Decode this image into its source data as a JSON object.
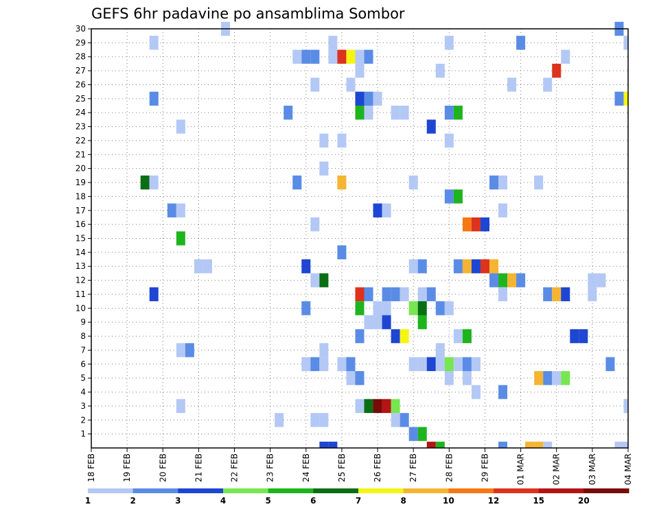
{
  "chart_data": {
    "type": "heatmap",
    "title": "GEFS 6hr padavine po ansamblima Sombor",
    "y_ticks": [
      "1",
      "2",
      "3",
      "4",
      "5",
      "6",
      "7",
      "8",
      "9",
      "10",
      "11",
      "12",
      "13",
      "14",
      "15",
      "16",
      "17",
      "18",
      "19",
      "20",
      "21",
      "22",
      "23",
      "24",
      "25",
      "26",
      "27",
      "28",
      "29",
      "30"
    ],
    "x_ticks": [
      "18 FEB",
      "19 FEB",
      "20 FEB",
      "21 FEB",
      "22 FEB",
      "23 FEB",
      "24 FEB",
      "25 FEB",
      "26 FEB",
      "27 FEB",
      "28 FEB",
      "29 FEB",
      "01 MAR",
      "02 MAR",
      "03 MAR",
      "04 MAR"
    ],
    "x_range_days": [
      0,
      15
    ],
    "y_range": [
      0,
      30
    ],
    "x_step_hours": 6,
    "grid": true,
    "colorbar": {
      "labels": [
        "1",
        "2",
        "3",
        "4",
        "5",
        "6",
        "7",
        "8",
        "10",
        "12",
        "15",
        "20"
      ],
      "colors": [
        "#b4c8f5",
        "#5a8ce6",
        "#1e46d2",
        "#78e650",
        "#1eb41e",
        "#0a6e14",
        "#f5f514",
        "#f5b432",
        "#f57814",
        "#dc321e",
        "#b41414",
        "#780a0a"
      ]
    },
    "cells": [
      {
        "t": 3.75,
        "y": 30,
        "c": 1
      },
      {
        "t": 14.75,
        "y": 30,
        "c": 2
      },
      {
        "t": 1.75,
        "y": 29,
        "c": 1
      },
      {
        "t": 6.75,
        "y": 29,
        "c": 1
      },
      {
        "t": 10.0,
        "y": 29,
        "c": 1
      },
      {
        "t": 12.0,
        "y": 29,
        "c": 2
      },
      {
        "t": 15.0,
        "y": 29,
        "c": 1
      },
      {
        "t": 5.75,
        "y": 28,
        "c": 1
      },
      {
        "t": 6.0,
        "y": 28,
        "c": 2
      },
      {
        "t": 6.25,
        "y": 28,
        "c": 2
      },
      {
        "t": 6.75,
        "y": 28,
        "c": 1
      },
      {
        "t": 7.0,
        "y": 28,
        "c": 10
      },
      {
        "t": 7.25,
        "y": 28,
        "c": 7
      },
      {
        "t": 7.5,
        "y": 28,
        "c": 1
      },
      {
        "t": 7.75,
        "y": 28,
        "c": 2
      },
      {
        "t": 13.25,
        "y": 28,
        "c": 1
      },
      {
        "t": 7.5,
        "y": 27,
        "c": 1
      },
      {
        "t": 9.75,
        "y": 27,
        "c": 1
      },
      {
        "t": 13.0,
        "y": 27,
        "c": 10
      },
      {
        "t": 6.25,
        "y": 26,
        "c": 1
      },
      {
        "t": 7.25,
        "y": 26,
        "c": 1
      },
      {
        "t": 11.75,
        "y": 26,
        "c": 1
      },
      {
        "t": 12.75,
        "y": 26,
        "c": 1
      },
      {
        "t": 1.75,
        "y": 25,
        "c": 2
      },
      {
        "t": 7.5,
        "y": 25,
        "c": 3
      },
      {
        "t": 7.75,
        "y": 25,
        "c": 2
      },
      {
        "t": 8.0,
        "y": 25,
        "c": 1
      },
      {
        "t": 14.75,
        "y": 25,
        "c": 2
      },
      {
        "t": 15.0,
        "y": 25,
        "c": 7
      },
      {
        "t": 5.5,
        "y": 24,
        "c": 2
      },
      {
        "t": 7.5,
        "y": 24,
        "c": 5
      },
      {
        "t": 7.75,
        "y": 24,
        "c": 1
      },
      {
        "t": 8.5,
        "y": 24,
        "c": 1
      },
      {
        "t": 8.75,
        "y": 24,
        "c": 1
      },
      {
        "t": 10.0,
        "y": 24,
        "c": 2
      },
      {
        "t": 10.25,
        "y": 24,
        "c": 5
      },
      {
        "t": 2.5,
        "y": 23,
        "c": 1
      },
      {
        "t": 9.5,
        "y": 23,
        "c": 3
      },
      {
        "t": 6.5,
        "y": 22,
        "c": 1
      },
      {
        "t": 7.0,
        "y": 22,
        "c": 1
      },
      {
        "t": 10.0,
        "y": 22,
        "c": 1
      },
      {
        "t": 6.5,
        "y": 20,
        "c": 1
      },
      {
        "t": 1.5,
        "y": 19,
        "c": 6
      },
      {
        "t": 1.75,
        "y": 19,
        "c": 1
      },
      {
        "t": 5.75,
        "y": 19,
        "c": 2
      },
      {
        "t": 7.0,
        "y": 19,
        "c": 8
      },
      {
        "t": 9.0,
        "y": 19,
        "c": 1
      },
      {
        "t": 11.25,
        "y": 19,
        "c": 2
      },
      {
        "t": 11.5,
        "y": 19,
        "c": 1
      },
      {
        "t": 12.5,
        "y": 19,
        "c": 1
      },
      {
        "t": 10.0,
        "y": 18,
        "c": 2
      },
      {
        "t": 10.25,
        "y": 18,
        "c": 5
      },
      {
        "t": 2.25,
        "y": 17,
        "c": 2
      },
      {
        "t": 2.5,
        "y": 17,
        "c": 1
      },
      {
        "t": 8.0,
        "y": 17,
        "c": 3
      },
      {
        "t": 8.25,
        "y": 17,
        "c": 1
      },
      {
        "t": 11.5,
        "y": 17,
        "c": 1
      },
      {
        "t": 6.25,
        "y": 16,
        "c": 1
      },
      {
        "t": 10.5,
        "y": 16,
        "c": 9
      },
      {
        "t": 10.75,
        "y": 16,
        "c": 10
      },
      {
        "t": 11.0,
        "y": 16,
        "c": 3
      },
      {
        "t": 2.5,
        "y": 15,
        "c": 5
      },
      {
        "t": 7.0,
        "y": 14,
        "c": 2
      },
      {
        "t": 3.0,
        "y": 13,
        "c": 1
      },
      {
        "t": 3.25,
        "y": 13,
        "c": 1
      },
      {
        "t": 6.0,
        "y": 13,
        "c": 3
      },
      {
        "t": 9.0,
        "y": 13,
        "c": 1
      },
      {
        "t": 9.25,
        "y": 13,
        "c": 2
      },
      {
        "t": 10.25,
        "y": 13,
        "c": 2
      },
      {
        "t": 10.5,
        "y": 13,
        "c": 8
      },
      {
        "t": 10.75,
        "y": 13,
        "c": 3
      },
      {
        "t": 11.0,
        "y": 13,
        "c": 10
      },
      {
        "t": 11.25,
        "y": 13,
        "c": 8
      },
      {
        "t": 6.25,
        "y": 12,
        "c": 1
      },
      {
        "t": 6.5,
        "y": 12,
        "c": 6
      },
      {
        "t": 11.25,
        "y": 12,
        "c": 2
      },
      {
        "t": 11.5,
        "y": 12,
        "c": 5
      },
      {
        "t": 11.75,
        "y": 12,
        "c": 8
      },
      {
        "t": 12.0,
        "y": 12,
        "c": 2
      },
      {
        "t": 14.0,
        "y": 12,
        "c": 1
      },
      {
        "t": 14.25,
        "y": 12,
        "c": 1
      },
      {
        "t": 1.75,
        "y": 11,
        "c": 3
      },
      {
        "t": 7.5,
        "y": 11,
        "c": 10
      },
      {
        "t": 7.75,
        "y": 11,
        "c": 2
      },
      {
        "t": 8.25,
        "y": 11,
        "c": 2
      },
      {
        "t": 8.5,
        "y": 11,
        "c": 2
      },
      {
        "t": 8.75,
        "y": 11,
        "c": 1
      },
      {
        "t": 9.25,
        "y": 11,
        "c": 1
      },
      {
        "t": 9.5,
        "y": 11,
        "c": 2
      },
      {
        "t": 11.5,
        "y": 11,
        "c": 1
      },
      {
        "t": 12.75,
        "y": 11,
        "c": 2
      },
      {
        "t": 13.0,
        "y": 11,
        "c": 8
      },
      {
        "t": 13.25,
        "y": 11,
        "c": 3
      },
      {
        "t": 14.0,
        "y": 11,
        "c": 1
      },
      {
        "t": 6.0,
        "y": 10,
        "c": 2
      },
      {
        "t": 7.5,
        "y": 10,
        "c": 5
      },
      {
        "t": 8.0,
        "y": 10,
        "c": 1
      },
      {
        "t": 8.25,
        "y": 10,
        "c": 1
      },
      {
        "t": 9.0,
        "y": 10,
        "c": 4
      },
      {
        "t": 9.25,
        "y": 10,
        "c": 6
      },
      {
        "t": 9.75,
        "y": 10,
        "c": 2
      },
      {
        "t": 10.0,
        "y": 10,
        "c": 1
      },
      {
        "t": 7.75,
        "y": 9,
        "c": 1
      },
      {
        "t": 8.0,
        "y": 9,
        "c": 1
      },
      {
        "t": 8.25,
        "y": 9,
        "c": 3
      },
      {
        "t": 9.25,
        "y": 9,
        "c": 5
      },
      {
        "t": 7.5,
        "y": 8,
        "c": 2
      },
      {
        "t": 8.5,
        "y": 8,
        "c": 3
      },
      {
        "t": 8.75,
        "y": 8,
        "c": 7
      },
      {
        "t": 10.25,
        "y": 8,
        "c": 1
      },
      {
        "t": 10.5,
        "y": 8,
        "c": 5
      },
      {
        "t": 13.5,
        "y": 8,
        "c": 3
      },
      {
        "t": 13.75,
        "y": 8,
        "c": 3
      },
      {
        "t": 2.5,
        "y": 7,
        "c": 1
      },
      {
        "t": 2.75,
        "y": 7,
        "c": 2
      },
      {
        "t": 6.5,
        "y": 7,
        "c": 1
      },
      {
        "t": 9.75,
        "y": 7,
        "c": 1
      },
      {
        "t": 6.0,
        "y": 6,
        "c": 1
      },
      {
        "t": 6.25,
        "y": 6,
        "c": 2
      },
      {
        "t": 6.5,
        "y": 6,
        "c": 1
      },
      {
        "t": 7.0,
        "y": 6,
        "c": 1
      },
      {
        "t": 7.25,
        "y": 6,
        "c": 2
      },
      {
        "t": 9.0,
        "y": 6,
        "c": 1
      },
      {
        "t": 9.25,
        "y": 6,
        "c": 1
      },
      {
        "t": 9.5,
        "y": 6,
        "c": 3
      },
      {
        "t": 9.75,
        "y": 6,
        "c": 1
      },
      {
        "t": 10.0,
        "y": 6,
        "c": 4
      },
      {
        "t": 10.25,
        "y": 6,
        "c": 1
      },
      {
        "t": 10.5,
        "y": 6,
        "c": 2
      },
      {
        "t": 10.75,
        "y": 6,
        "c": 1
      },
      {
        "t": 14.5,
        "y": 6,
        "c": 2
      },
      {
        "t": 7.25,
        "y": 5,
        "c": 1
      },
      {
        "t": 7.5,
        "y": 5,
        "c": 2
      },
      {
        "t": 10.0,
        "y": 5,
        "c": 1
      },
      {
        "t": 10.5,
        "y": 5,
        "c": 1
      },
      {
        "t": 12.5,
        "y": 5,
        "c": 8
      },
      {
        "t": 12.75,
        "y": 5,
        "c": 2
      },
      {
        "t": 13.0,
        "y": 5,
        "c": 1
      },
      {
        "t": 13.25,
        "y": 5,
        "c": 4
      },
      {
        "t": 10.75,
        "y": 4,
        "c": 1
      },
      {
        "t": 11.5,
        "y": 4,
        "c": 2
      },
      {
        "t": 2.5,
        "y": 3,
        "c": 1
      },
      {
        "t": 7.5,
        "y": 3,
        "c": 1
      },
      {
        "t": 7.75,
        "y": 3,
        "c": 6
      },
      {
        "t": 8.0,
        "y": 3,
        "c": 12
      },
      {
        "t": 8.25,
        "y": 3,
        "c": 11
      },
      {
        "t": 8.5,
        "y": 3,
        "c": 4
      },
      {
        "t": 15.0,
        "y": 3,
        "c": 1
      },
      {
        "t": 5.25,
        "y": 2,
        "c": 1
      },
      {
        "t": 6.25,
        "y": 2,
        "c": 1
      },
      {
        "t": 6.5,
        "y": 2,
        "c": 1
      },
      {
        "t": 8.5,
        "y": 2,
        "c": 1
      },
      {
        "t": 8.75,
        "y": 2,
        "c": 2
      },
      {
        "t": 9.0,
        "y": 1,
        "c": 2
      },
      {
        "t": 9.25,
        "y": 1,
        "c": 5
      },
      {
        "t": 6.5,
        "y": 0,
        "c": 3
      },
      {
        "t": 6.75,
        "y": 0,
        "c": 3
      },
      {
        "t": 9.5,
        "y": 0,
        "c": 11
      },
      {
        "t": 9.75,
        "y": 0,
        "c": 5
      },
      {
        "t": 11.5,
        "y": 0,
        "c": 2
      },
      {
        "t": 12.25,
        "y": 0,
        "c": 8
      },
      {
        "t": 12.5,
        "y": 0,
        "c": 8
      },
      {
        "t": 12.75,
        "y": 0,
        "c": 1
      },
      {
        "t": 14.75,
        "y": 0,
        "c": 1
      },
      {
        "t": 15.0,
        "y": 0,
        "c": 1
      }
    ]
  }
}
